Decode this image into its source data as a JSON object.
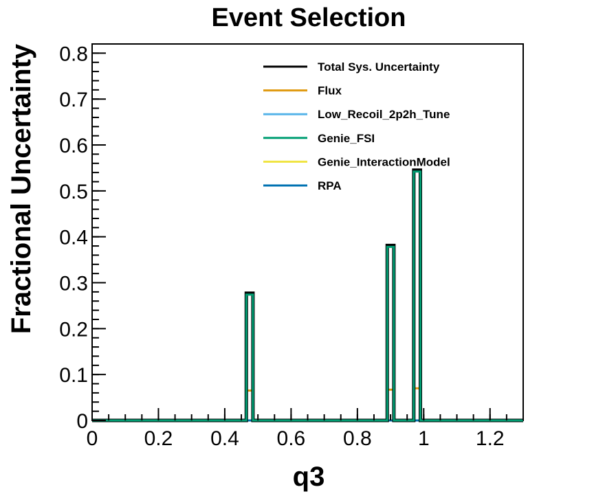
{
  "chart_data": {
    "type": "line",
    "title": "Event Selection",
    "xlabel": "q3",
    "ylabel": "Fractional Uncertainty",
    "xlim": [
      0,
      1.3
    ],
    "ylim": [
      0,
      0.82
    ],
    "x_ticks": [
      "0",
      "0.2",
      "0.4",
      "0.6",
      "0.8",
      "1",
      "1.2"
    ],
    "y_ticks": [
      "0",
      "0.1",
      "0.2",
      "0.3",
      "0.4",
      "0.5",
      "0.6",
      "0.7",
      "0.8"
    ],
    "legend_position": "top-right",
    "grid": false,
    "bin_edges": [
      0.465,
      0.485,
      0.89,
      0.91,
      0.97,
      0.99
    ],
    "series": [
      {
        "name": "Total Sys. Uncertainty",
        "color": "#000000",
        "peaks": [
          0.277,
          0.381,
          0.545
        ]
      },
      {
        "name": "Flux",
        "color": "#e09a10",
        "peaks": [
          0.065,
          0.067,
          0.07
        ]
      },
      {
        "name": "Low_Recoil_2p2h_Tune",
        "color": "#56b4e9",
        "peaks": [
          0.0,
          0.0,
          0.0
        ]
      },
      {
        "name": "Genie_FSI",
        "color": "#009e73",
        "peaks": [
          0.274,
          0.378,
          0.542
        ]
      },
      {
        "name": "Genie_InteractionModel",
        "color": "#f0e442",
        "peaks": [
          0.0,
          0.0,
          0.0
        ]
      },
      {
        "name": "RPA",
        "color": "#0072b2",
        "peaks": [
          0.0,
          0.0,
          0.0
        ]
      }
    ]
  }
}
